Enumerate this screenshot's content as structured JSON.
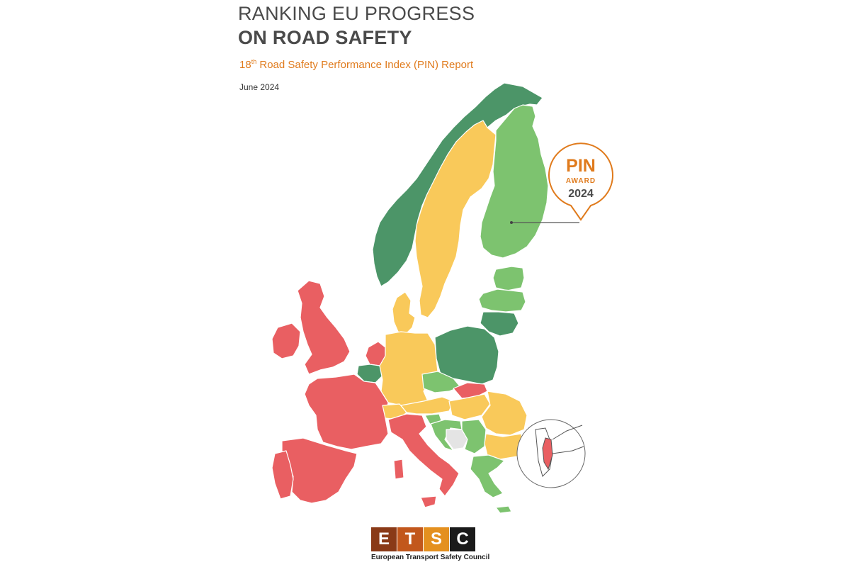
{
  "cover": {
    "title_line1": "RANKING EU PROGRESS",
    "title_line2": "ON ROAD SAFETY",
    "subtitle_prefix": "18",
    "subtitle_sup": "th",
    "subtitle_rest": " Road Safety Performance Index (PIN) Report",
    "date": "June 2024"
  },
  "map": {
    "legend_colors": {
      "dark_green": "#4c9568",
      "light_green": "#7dc36f",
      "yellow": "#f9c95a",
      "red": "#e95f62",
      "grey": "#e4e4e4"
    },
    "countries": [
      {
        "name": "Norway",
        "color": "dark_green"
      },
      {
        "name": "Sweden",
        "color": "yellow"
      },
      {
        "name": "Finland",
        "color": "light_green"
      },
      {
        "name": "Estonia",
        "color": "light_green"
      },
      {
        "name": "Latvia",
        "color": "light_green"
      },
      {
        "name": "Lithuania",
        "color": "dark_green"
      },
      {
        "name": "Denmark",
        "color": "yellow"
      },
      {
        "name": "United Kingdom",
        "color": "red"
      },
      {
        "name": "Ireland",
        "color": "red"
      },
      {
        "name": "Netherlands",
        "color": "red"
      },
      {
        "name": "Belgium",
        "color": "dark_green"
      },
      {
        "name": "Luxembourg",
        "color": "light_green"
      },
      {
        "name": "Germany",
        "color": "yellow"
      },
      {
        "name": "Poland",
        "color": "dark_green"
      },
      {
        "name": "Czechia",
        "color": "light_green"
      },
      {
        "name": "Slovakia",
        "color": "red"
      },
      {
        "name": "France",
        "color": "red"
      },
      {
        "name": "Switzerland",
        "color": "yellow"
      },
      {
        "name": "Austria",
        "color": "yellow"
      },
      {
        "name": "Hungary",
        "color": "yellow"
      },
      {
        "name": "Romania",
        "color": "yellow"
      },
      {
        "name": "Slovenia",
        "color": "light_green"
      },
      {
        "name": "Croatia",
        "color": "light_green"
      },
      {
        "name": "Serbia",
        "color": "light_green"
      },
      {
        "name": "Bosnia and Herzegovina",
        "color": "grey"
      },
      {
        "name": "Bulgaria",
        "color": "yellow"
      },
      {
        "name": "Italy",
        "color": "red"
      },
      {
        "name": "Spain",
        "color": "red"
      },
      {
        "name": "Portugal",
        "color": "red"
      },
      {
        "name": "Greece",
        "color": "light_green"
      },
      {
        "name": "Cyprus",
        "color": "light_green"
      },
      {
        "name": "Israel",
        "color": "red"
      }
    ]
  },
  "award": {
    "line1": "PIN",
    "line2": "AWARD",
    "line3": "2024",
    "color": "#e07b1d"
  },
  "logo": {
    "letters": [
      "E",
      "T",
      "S",
      "C"
    ],
    "colors": [
      "#8a3a17",
      "#c2571c",
      "#e4901f",
      "#1a1a1a"
    ],
    "caption": "European Transport Safety Council"
  }
}
